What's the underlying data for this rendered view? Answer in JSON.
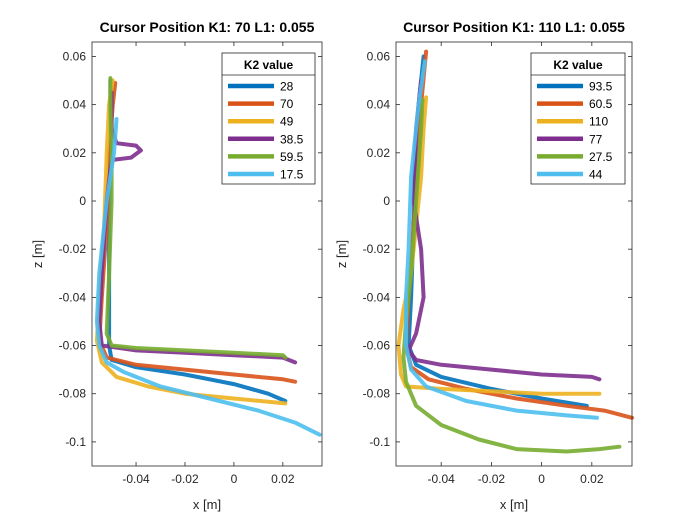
{
  "chart_data": [
    {
      "type": "line",
      "title": "Cursor Position K1: 70 L1: 0.055",
      "xlabel": "x [m]",
      "ylabel": "z [m]",
      "xlim": [
        -0.058,
        0.036
      ],
      "ylim": [
        -0.11,
        0.066
      ],
      "xticks": [
        -0.04,
        -0.02,
        0,
        0.02
      ],
      "xtick_labels": [
        "-0.04",
        "-0.02",
        "0",
        "0.02"
      ],
      "yticks": [
        -0.1,
        -0.08,
        -0.06,
        -0.04,
        -0.02,
        0,
        0.02,
        0.04,
        0.06
      ],
      "ytick_labels": [
        "-0.1",
        "-0.08",
        "-0.06",
        "-0.04",
        "-0.02",
        "0",
        "0.02",
        "0.04",
        "0.06"
      ],
      "legend": {
        "title": "K2 value",
        "position": "top-right"
      },
      "series": [
        {
          "name": "28",
          "color": "#0072BD",
          "points": [
            [
              -0.0505,
              0.05
            ],
            [
              -0.0505,
              0.04
            ],
            [
              -0.0505,
              0.02
            ],
            [
              -0.051,
              -0.01
            ],
            [
              -0.051,
              -0.04
            ],
            [
              -0.051,
              -0.06
            ],
            [
              -0.05,
              -0.066
            ],
            [
              -0.04,
              -0.069
            ],
            [
              -0.02,
              -0.072
            ],
            [
              0.0,
              -0.076
            ],
            [
              0.014,
              -0.08
            ],
            [
              0.021,
              -0.083
            ]
          ]
        },
        {
          "name": "70",
          "color": "#D95319",
          "points": [
            [
              -0.0485,
              0.049
            ],
            [
              -0.0495,
              0.04
            ],
            [
              -0.051,
              0.02
            ],
            [
              -0.052,
              -0.01
            ],
            [
              -0.054,
              -0.04
            ],
            [
              -0.055,
              -0.058
            ],
            [
              -0.052,
              -0.065
            ],
            [
              -0.04,
              -0.068
            ],
            [
              -0.02,
              -0.07
            ],
            [
              0.0,
              -0.072
            ],
            [
              0.02,
              -0.074
            ],
            [
              0.025,
              -0.075
            ]
          ]
        },
        {
          "name": "49",
          "color": "#EDB120",
          "points": [
            [
              -0.0495,
              0.05
            ],
            [
              -0.051,
              0.04
            ],
            [
              -0.052,
              0.02
            ],
            [
              -0.053,
              -0.01
            ],
            [
              -0.055,
              -0.04
            ],
            [
              -0.056,
              -0.058
            ],
            [
              -0.054,
              -0.067
            ],
            [
              -0.048,
              -0.073
            ],
            [
              -0.035,
              -0.077
            ],
            [
              -0.02,
              -0.08
            ],
            [
              0.0,
              -0.082
            ],
            [
              0.021,
              -0.084
            ]
          ]
        },
        {
          "name": "38.5",
          "color": "#7E2F8E",
          "points": [
            [
              -0.05,
              0.045
            ],
            [
              -0.05,
              0.03
            ],
            [
              -0.048,
              0.024
            ],
            [
              -0.04,
              0.023
            ],
            [
              -0.038,
              0.021
            ],
            [
              -0.042,
              0.018
            ],
            [
              -0.05,
              0.017
            ],
            [
              -0.052,
              0.0
            ],
            [
              -0.054,
              -0.03
            ],
            [
              -0.055,
              -0.05
            ],
            [
              -0.054,
              -0.06
            ],
            [
              -0.04,
              -0.062
            ],
            [
              -0.02,
              -0.063
            ],
            [
              0.0,
              -0.064
            ],
            [
              0.02,
              -0.065
            ],
            [
              0.025,
              -0.067
            ]
          ]
        },
        {
          "name": "59.5",
          "color": "#77AC30",
          "points": [
            [
              -0.0505,
              0.051
            ],
            [
              -0.0505,
              0.04
            ],
            [
              -0.05,
              0.02
            ],
            [
              -0.05,
              0.0
            ],
            [
              -0.051,
              -0.03
            ],
            [
              -0.052,
              -0.055
            ],
            [
              -0.05,
              -0.06
            ],
            [
              -0.04,
              -0.061
            ],
            [
              -0.02,
              -0.062
            ],
            [
              0.0,
              -0.063
            ],
            [
              0.02,
              -0.064
            ],
            [
              0.021,
              -0.065
            ]
          ]
        },
        {
          "name": "17.5",
          "color": "#4DBEEE",
          "points": [
            [
              -0.048,
              0.034
            ],
            [
              -0.049,
              0.02
            ],
            [
              -0.052,
              0.0
            ],
            [
              -0.055,
              -0.03
            ],
            [
              -0.056,
              -0.05
            ],
            [
              -0.055,
              -0.06
            ],
            [
              -0.052,
              -0.067
            ],
            [
              -0.045,
              -0.071
            ],
            [
              -0.03,
              -0.077
            ],
            [
              -0.01,
              -0.082
            ],
            [
              0.01,
              -0.087
            ],
            [
              0.025,
              -0.092
            ],
            [
              0.035,
              -0.097
            ]
          ]
        }
      ]
    },
    {
      "type": "line",
      "title": "Cursor Position K1: 110 L1: 0.055",
      "xlabel": "x [m]",
      "ylabel": "z [m]",
      "xlim": [
        -0.058,
        0.036
      ],
      "ylim": [
        -0.11,
        0.066
      ],
      "xticks": [
        -0.04,
        -0.02,
        0,
        0.02
      ],
      "xtick_labels": [
        "-0.04",
        "-0.02",
        "0",
        "0.02"
      ],
      "yticks": [
        -0.1,
        -0.08,
        -0.06,
        -0.04,
        -0.02,
        0,
        0.02,
        0.04,
        0.06
      ],
      "ytick_labels": [
        "-0.1",
        "-0.08",
        "-0.06",
        "-0.04",
        "-0.02",
        "0",
        "0.02",
        "0.04",
        "0.06"
      ],
      "legend": {
        "title": "K2 value",
        "position": "top-right"
      },
      "series": [
        {
          "name": "93.5",
          "color": "#0072BD",
          "points": [
            [
              -0.047,
              0.06
            ],
            [
              -0.049,
              0.04
            ],
            [
              -0.05,
              0.02
            ],
            [
              -0.051,
              -0.01
            ],
            [
              -0.052,
              -0.04
            ],
            [
              -0.053,
              -0.06
            ],
            [
              -0.05,
              -0.068
            ],
            [
              -0.04,
              -0.073
            ],
            [
              -0.02,
              -0.078
            ],
            [
              0.0,
              -0.082
            ],
            [
              0.018,
              -0.085
            ]
          ]
        },
        {
          "name": "60.5",
          "color": "#D95319",
          "points": [
            [
              -0.046,
              0.062
            ],
            [
              -0.048,
              0.04
            ],
            [
              -0.049,
              0.02
            ],
            [
              -0.051,
              -0.01
            ],
            [
              -0.053,
              -0.04
            ],
            [
              -0.054,
              -0.06
            ],
            [
              -0.052,
              -0.069
            ],
            [
              -0.045,
              -0.074
            ],
            [
              -0.03,
              -0.078
            ],
            [
              -0.01,
              -0.082
            ],
            [
              0.01,
              -0.085
            ],
            [
              0.025,
              -0.087
            ],
            [
              0.036,
              -0.09
            ]
          ]
        },
        {
          "name": "110",
          "color": "#EDB120",
          "points": [
            [
              -0.046,
              0.043
            ],
            [
              -0.047,
              0.03
            ],
            [
              -0.048,
              0.01
            ],
            [
              -0.05,
              -0.01
            ],
            [
              -0.052,
              -0.03
            ],
            [
              -0.055,
              -0.045
            ],
            [
              -0.057,
              -0.06
            ],
            [
              -0.056,
              -0.072
            ],
            [
              -0.054,
              -0.077
            ],
            [
              -0.04,
              -0.078
            ],
            [
              -0.02,
              -0.079
            ],
            [
              0.0,
              -0.08
            ],
            [
              0.023,
              -0.08
            ]
          ]
        },
        {
          "name": "77",
          "color": "#7E2F8E",
          "points": [
            [
              -0.048,
              0.05
            ],
            [
              -0.05,
              0.03
            ],
            [
              -0.051,
              0.0
            ],
            [
              -0.048,
              -0.02
            ],
            [
              -0.047,
              -0.04
            ],
            [
              -0.05,
              -0.055
            ],
            [
              -0.053,
              -0.062
            ],
            [
              -0.05,
              -0.066
            ],
            [
              -0.04,
              -0.068
            ],
            [
              -0.02,
              -0.07
            ],
            [
              0.0,
              -0.072
            ],
            [
              0.02,
              -0.073
            ],
            [
              0.023,
              -0.074
            ]
          ]
        },
        {
          "name": "27.5",
          "color": "#77AC30",
          "points": [
            [
              -0.0475,
              0.042
            ],
            [
              -0.048,
              0.03
            ],
            [
              -0.05,
              0.0
            ],
            [
              -0.052,
              -0.03
            ],
            [
              -0.054,
              -0.05
            ],
            [
              -0.055,
              -0.065
            ],
            [
              -0.054,
              -0.075
            ],
            [
              -0.05,
              -0.085
            ],
            [
              -0.04,
              -0.093
            ],
            [
              -0.025,
              -0.099
            ],
            [
              -0.01,
              -0.103
            ],
            [
              0.01,
              -0.104
            ],
            [
              0.023,
              -0.103
            ],
            [
              0.031,
              -0.102
            ]
          ]
        },
        {
          "name": "44",
          "color": "#4DBEEE",
          "points": [
            [
              -0.0465,
              0.058
            ],
            [
              -0.049,
              0.04
            ],
            [
              -0.052,
              0.01
            ],
            [
              -0.053,
              -0.02
            ],
            [
              -0.054,
              -0.04
            ],
            [
              -0.054,
              -0.06
            ],
            [
              -0.052,
              -0.07
            ],
            [
              -0.046,
              -0.077
            ],
            [
              -0.03,
              -0.083
            ],
            [
              -0.01,
              -0.087
            ],
            [
              0.01,
              -0.089
            ],
            [
              0.022,
              -0.09
            ]
          ]
        }
      ]
    }
  ]
}
